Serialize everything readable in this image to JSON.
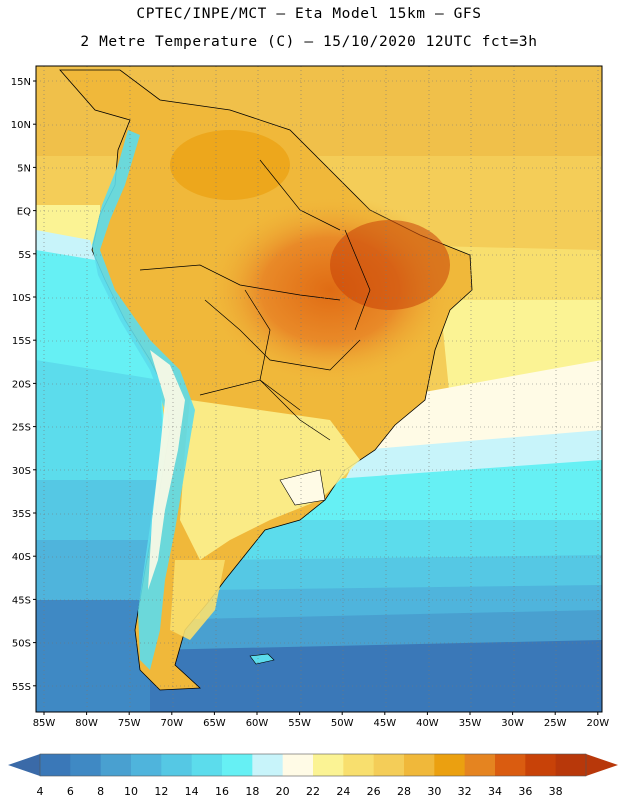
{
  "title_line1": "CPTEC/INPE/MCT –  Eta Model 15km – GFS",
  "title_line2": "2 Metre Temperature (C) – 15/10/2020 12UTC fct=3h",
  "lat_labels": [
    "15N",
    "10N",
    "5N",
    "EQ",
    "5S",
    "10S",
    "15S",
    "20S",
    "25S",
    "30S",
    "35S",
    "40S",
    "45S",
    "50S",
    "55S"
  ],
  "lon_labels": [
    "85W",
    "80W",
    "75W",
    "70W",
    "65W",
    "60W",
    "55W",
    "50W",
    "45W",
    "40W",
    "35W",
    "30W",
    "25W",
    "20W"
  ],
  "colorbar": {
    "labels": [
      "4",
      "6",
      "8",
      "10",
      "12",
      "14",
      "16",
      "18",
      "20",
      "22",
      "24",
      "26",
      "28",
      "30",
      "32",
      "34",
      "36",
      "38"
    ],
    "colors": [
      "#3a78b8",
      "#3f89c4",
      "#49a0d0",
      "#4fb4dc",
      "#55c8e4",
      "#5cdcec",
      "#66f0f4",
      "#c8f4fa",
      "#fffbe6",
      "#fbf394",
      "#f8df6e",
      "#f4cd58",
      "#f0b83a",
      "#eba010",
      "#e58420",
      "#da5c10",
      "#c84208",
      "#b8380a"
    ],
    "left_arrow_color": "#3a6aa8",
    "right_arrow_color": "#b8380a"
  }
}
